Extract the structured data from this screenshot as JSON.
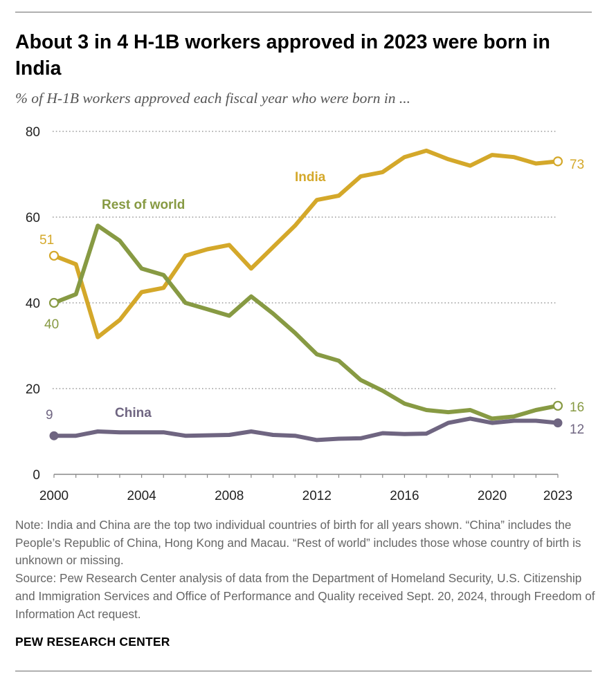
{
  "title": "About 3 in 4 H-1B workers approved in 2023 were born in India",
  "subtitle": "% of H-1B workers approved each fiscal year who were born in ...",
  "colors": {
    "india": "#D4A82A",
    "rest_of_world": "#879A43",
    "china": "#6F6581",
    "grid": "#9a9a9a"
  },
  "chart_data": {
    "type": "line",
    "x": [
      2000,
      2001,
      2002,
      2003,
      2004,
      2005,
      2006,
      2007,
      2008,
      2009,
      2010,
      2011,
      2012,
      2013,
      2014,
      2015,
      2016,
      2017,
      2018,
      2019,
      2020,
      2021,
      2022,
      2023
    ],
    "series": [
      {
        "name": "India",
        "key": "india",
        "values": [
          51,
          49,
          32,
          36,
          42.5,
          43.5,
          51,
          52.5,
          53.5,
          48,
          53,
          58,
          64,
          65,
          69.5,
          70.5,
          74,
          75.5,
          73.5,
          72,
          74.5,
          74,
          72.5,
          73
        ]
      },
      {
        "name": "Rest of world",
        "key": "rest_of_world",
        "values": [
          40,
          42,
          58,
          54.5,
          48,
          46.5,
          40,
          38.5,
          37,
          41.5,
          37.5,
          33,
          28,
          26.5,
          22,
          19.5,
          16.5,
          15,
          14.5,
          15,
          13,
          13.5,
          15,
          16
        ]
      },
      {
        "name": "China",
        "key": "china",
        "values": [
          9,
          9,
          10,
          9.8,
          9.8,
          9.8,
          9,
          9.1,
          9.2,
          10,
          9.2,
          9,
          8,
          8.3,
          8.4,
          9.6,
          9.4,
          9.5,
          12,
          13,
          12,
          12.5,
          12.5,
          12
        ]
      }
    ],
    "series_labels": {
      "india": "India",
      "rest_of_world": "Rest of world",
      "china": "China"
    },
    "start_labels": {
      "india": "51",
      "rest_of_world": "40",
      "china": "9"
    },
    "end_labels": {
      "india": "73",
      "rest_of_world": "16",
      "china": "12"
    },
    "yticks": [
      0,
      20,
      40,
      60,
      80
    ],
    "xticks": [
      2000,
      2004,
      2008,
      2012,
      2016,
      2020,
      2023
    ],
    "ylim": [
      0,
      80
    ],
    "xlim": [
      2000,
      2023
    ],
    "grid": true,
    "xlabel": "",
    "ylabel": ""
  },
  "notes": {
    "note": "Note: India and China are the top two individual countries of birth for all years shown. “China” includes the People’s Republic of China, Hong Kong and Macau. “Rest of world” includes those whose country of birth is unknown or missing.",
    "source": "Source: Pew Research Center analysis of data from the Department of Homeland Security, U.S. Citizenship and Immigration Services and Office of Performance and Quality received Sept. 20, 2024, through Freedom of Information Act request."
  },
  "branding": {
    "logo": "PEW RESEARCH CENTER"
  }
}
